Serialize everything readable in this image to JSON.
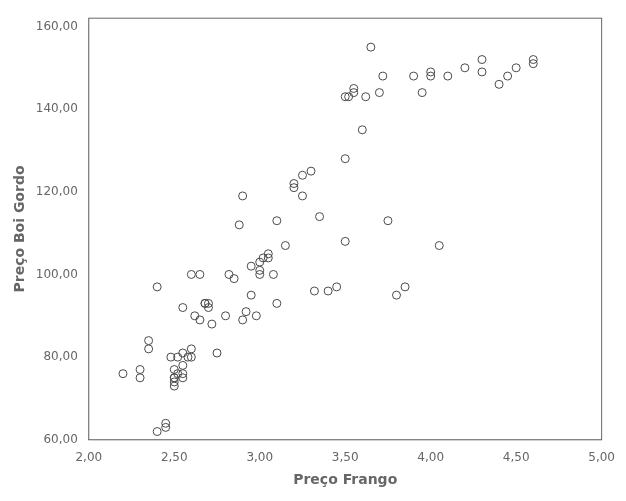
{
  "chart_data": {
    "type": "scatter",
    "x": [
      2.2,
      2.3,
      2.3,
      2.35,
      2.35,
      2.4,
      2.4,
      2.45,
      2.45,
      2.48,
      2.5,
      2.5,
      2.5,
      2.5,
      2.5,
      2.52,
      2.52,
      2.55,
      2.55,
      2.55,
      2.55,
      2.55,
      2.58,
      2.6,
      2.6,
      2.6,
      2.62,
      2.65,
      2.65,
      2.68,
      2.68,
      2.7,
      2.7,
      2.72,
      2.75,
      2.8,
      2.82,
      2.85,
      2.88,
      2.9,
      2.9,
      2.92,
      2.95,
      2.95,
      2.98,
      3.0,
      3.0,
      3.0,
      3.02,
      3.05,
      3.05,
      3.08,
      3.1,
      3.1,
      3.15,
      3.2,
      3.2,
      3.25,
      3.25,
      3.3,
      3.32,
      3.35,
      3.4,
      3.45,
      3.5,
      3.5,
      3.5,
      3.52,
      3.55,
      3.55,
      3.6,
      3.62,
      3.65,
      3.7,
      3.72,
      3.75,
      3.8,
      3.85,
      3.9,
      3.95,
      4.0,
      4.0,
      4.05,
      4.1,
      4.2,
      4.3,
      4.3,
      4.4,
      4.45,
      4.5,
      4.6,
      4.6
    ],
    "values": [
      76,
      77,
      75,
      82,
      84,
      62,
      97,
      63,
      64,
      80,
      75,
      75,
      74,
      73,
      77,
      80,
      76,
      81,
      78,
      76,
      75,
      92,
      80,
      80,
      82,
      100,
      90,
      89,
      100,
      93,
      93,
      93,
      92,
      88,
      81,
      90,
      100,
      99,
      112,
      119,
      89,
      91,
      102,
      95,
      90,
      101,
      103,
      100,
      104,
      104,
      105,
      100,
      113,
      93,
      107,
      121,
      122,
      124,
      119,
      125,
      96,
      114,
      96,
      97,
      128,
      108,
      143,
      143,
      145,
      144,
      135,
      143,
      155,
      144,
      148,
      113,
      95,
      97,
      148,
      144,
      148,
      149,
      107,
      148,
      150,
      149,
      152,
      146,
      148,
      150,
      151,
      152
    ],
    "xlabel": "Preço Frango",
    "ylabel": "Preço Boi Gordo",
    "xlim": [
      2.0,
      5.0
    ],
    "ylim": [
      60.0,
      162.0
    ],
    "xticks": [
      {
        "value": 2.0,
        "label": "2,00"
      },
      {
        "value": 2.5,
        "label": "2,50"
      },
      {
        "value": 3.0,
        "label": "3,00"
      },
      {
        "value": 3.5,
        "label": "3,50"
      },
      {
        "value": 4.0,
        "label": "4,00"
      },
      {
        "value": 4.5,
        "label": "4,50"
      },
      {
        "value": 5.0,
        "label": "5,00"
      }
    ],
    "yticks": [
      {
        "value": 60.0,
        "label": "60,00"
      },
      {
        "value": 80.0,
        "label": "80,00"
      },
      {
        "value": 100.0,
        "label": "100,00"
      },
      {
        "value": 120.0,
        "label": "120,00"
      },
      {
        "value": 140.0,
        "label": "140,00"
      },
      {
        "value": 160.0,
        "label": "160,00"
      }
    ],
    "color": "#4a4a4a",
    "marker": "circle",
    "grid": false
  }
}
